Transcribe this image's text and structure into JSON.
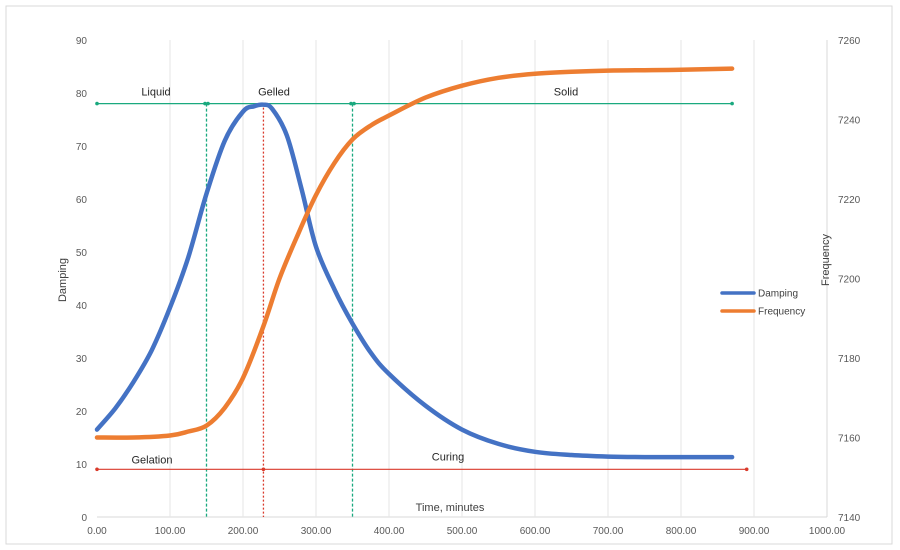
{
  "chart_data": {
    "type": "line",
    "x_axis": {
      "label": "Time, minutes",
      "range": [
        0,
        1000
      ],
      "ticks": [
        "0.00",
        "100.00",
        "200.00",
        "300.00",
        "400.00",
        "500.00",
        "600.00",
        "700.00",
        "800.00",
        "900.00",
        "1000.00"
      ]
    },
    "y_axis_left": {
      "label": "Damping",
      "range": [
        0,
        90
      ],
      "ticks": [
        "0",
        "10",
        "20",
        "30",
        "40",
        "50",
        "60",
        "70",
        "80",
        "90"
      ]
    },
    "y_axis_right": {
      "label": "Frequency",
      "range": [
        7140,
        7260
      ],
      "ticks": [
        "7140",
        "7160",
        "7180",
        "7200",
        "7220",
        "7240",
        "7260"
      ]
    },
    "grid": "vertical",
    "legend_position": "right",
    "series": [
      {
        "name": "Damping",
        "axis": "left",
        "color": "#4472C4",
        "x": [
          0,
          25,
          50,
          75,
          100,
          125,
          150,
          175,
          200,
          215,
          228,
          240,
          260,
          280,
          300,
          325,
          350,
          375,
          400,
          450,
          500,
          550,
          600,
          650,
          700,
          750,
          800,
          870
        ],
        "y": [
          16.5,
          20.5,
          25.5,
          31.5,
          39.5,
          49,
          61,
          71,
          76.5,
          77.5,
          77.8,
          77,
          72,
          62,
          51,
          43,
          36.5,
          31,
          27,
          21,
          16.5,
          13.8,
          12.3,
          11.7,
          11.4,
          11.3,
          11.3,
          11.3
        ]
      },
      {
        "name": "Frequency",
        "axis": "right",
        "color": "#ED7D31",
        "x": [
          0,
          50,
          100,
          125,
          150,
          175,
          200,
          228,
          250,
          275,
          300,
          325,
          350,
          375,
          400,
          450,
          500,
          550,
          600,
          650,
          700,
          750,
          800,
          870
        ],
        "y": [
          7160,
          7160,
          7160.5,
          7161.5,
          7163,
          7167.5,
          7175,
          7188,
          7200,
          7211,
          7221,
          7229,
          7235,
          7238.5,
          7241,
          7245.5,
          7248.5,
          7250.5,
          7251.5,
          7252,
          7252.3,
          7252.4,
          7252.5,
          7252.8
        ]
      }
    ],
    "legend": [
      "Damping",
      "Frequency"
    ],
    "annotations": {
      "phase_labels": [
        "Liquid",
        "Gelled",
        "Solid"
      ],
      "phase_x": [
        150,
        350
      ],
      "phase_line_y": 78,
      "process_labels": [
        "Gelation",
        "Curing"
      ],
      "process_line_y": 9,
      "peak_x": 228,
      "process_line_end": 890
    },
    "colors": {
      "phase_line": "#1aa97f",
      "process_line": "#d93a2b",
      "phase_divider": "#1aa97f",
      "peak_divider": "#d93a2b"
    }
  }
}
